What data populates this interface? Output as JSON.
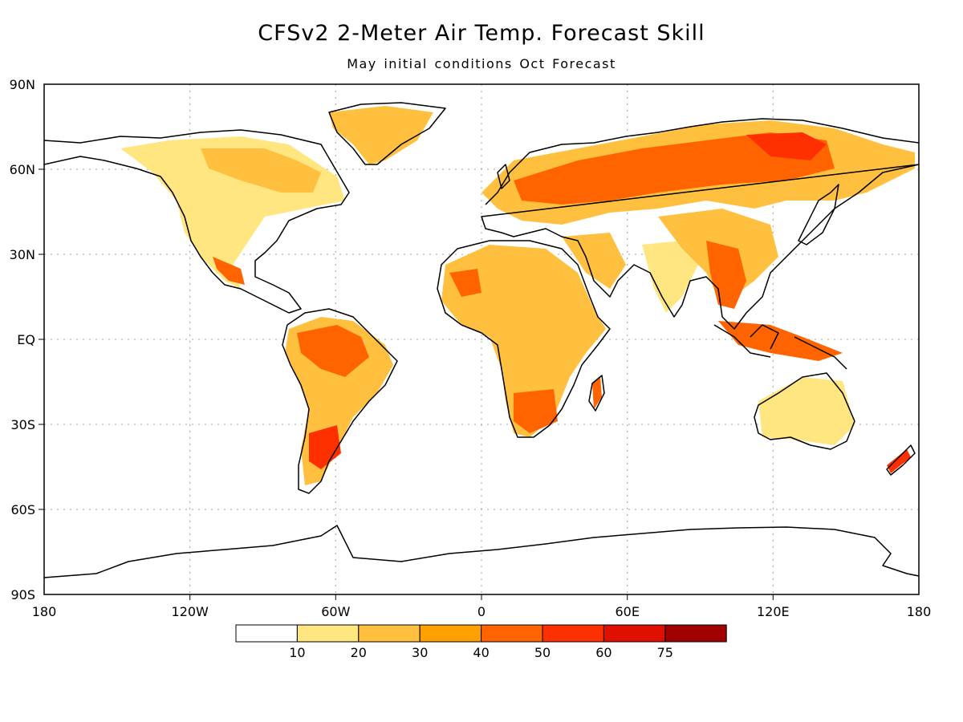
{
  "title": "CFSv2 2-Meter Air Temp. Forecast Skill",
  "subtitle": "May initial conditions   Oct Forecast",
  "axes": {
    "lon_labels": [
      "180",
      "120W",
      "60W",
      "0",
      "60E",
      "120E",
      "180"
    ],
    "lat_labels": [
      "90N",
      "60N",
      "30N",
      "EQ",
      "30S",
      "60S",
      "90S"
    ]
  },
  "colorbar": {
    "colors": [
      "#ffffff",
      "#ffe680",
      "#ffc040",
      "#ffa000",
      "#ff6400",
      "#ff3000",
      "#e01000",
      "#a00000"
    ],
    "labels": [
      "10",
      "20",
      "30",
      "40",
      "50",
      "60",
      "75"
    ]
  },
  "map_colors": {
    "ocean": "#ffffff",
    "coast": "#000000",
    "grid": "#a0a0a0"
  }
}
